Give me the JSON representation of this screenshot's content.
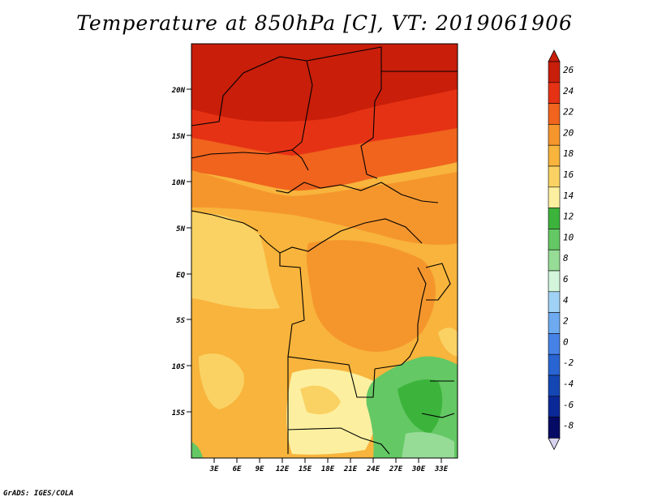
{
  "title": "Temperature at 850hPa [C], VT: 2019061906",
  "credit": "GrADS: IGES/COLA",
  "map": {
    "lat_ticks": [
      "20N",
      "15N",
      "10N",
      "5N",
      "EQ",
      "5S",
      "10S",
      "15S"
    ],
    "lon_ticks": [
      "3E",
      "6E",
      "9E",
      "12E",
      "15E",
      "18E",
      "21E",
      "24E",
      "27E",
      "30E",
      "33E"
    ]
  },
  "colorbar": {
    "labels": [
      "26",
      "24",
      "22",
      "20",
      "18",
      "16",
      "14",
      "12",
      "10",
      "8",
      "6",
      "4",
      "2",
      "0",
      "-2",
      "-4",
      "-6",
      "-8"
    ],
    "colors": [
      "#c81e0a",
      "#e63214",
      "#f0641e",
      "#f5962d",
      "#f8b43c",
      "#fad264",
      "#fcf0a0",
      "#3cb43c",
      "#64c864",
      "#96dc96",
      "#d2f5dc",
      "#a0d2f5",
      "#6eaaf0",
      "#4682e6",
      "#2864d2",
      "#1446b4",
      "#0a2896",
      "#050a64"
    ],
    "over_color": "#c81e0a",
    "under_color": "#d8d4f0"
  }
}
